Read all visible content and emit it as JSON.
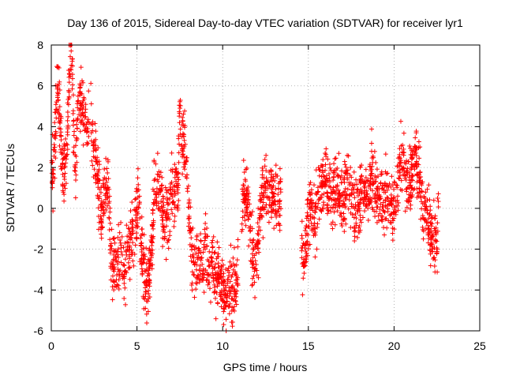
{
  "chart_data": {
    "type": "scatter",
    "title": "Day 136 of 2015, Sidereal Day-to-day VTEC variation (SDTVAR) for receiver lyr1",
    "xlabel": "GPS time / hours",
    "ylabel": "SDTVAR / TECUs",
    "xlim": [
      0,
      25
    ],
    "ylim": [
      -6,
      8
    ],
    "xticks": [
      "0",
      "5",
      "10",
      "15",
      "20",
      "25"
    ],
    "yticks": [
      "-6",
      "-4",
      "-2",
      "0",
      "2",
      "4",
      "6",
      "8"
    ],
    "grid": true,
    "marker": "plus",
    "series": [
      {
        "name": "SDTVAR",
        "color": "#ff0000",
        "trace": [
          [
            0.0,
            2.5
          ],
          [
            0.1,
            1.5
          ],
          [
            0.2,
            3.0
          ],
          [
            0.3,
            5.6
          ],
          [
            0.4,
            5.8
          ],
          [
            0.5,
            4.5
          ],
          [
            0.6,
            2.5
          ],
          [
            0.7,
            1.2
          ],
          [
            0.8,
            2.0
          ],
          [
            0.9,
            2.5
          ],
          [
            1.0,
            5.5
          ],
          [
            1.1,
            7.0
          ],
          [
            1.2,
            7.8
          ],
          [
            1.3,
            4.0
          ],
          [
            1.4,
            1.5
          ],
          [
            1.5,
            4.5
          ],
          [
            1.7,
            5.3
          ],
          [
            1.9,
            4.8
          ],
          [
            2.1,
            3.5
          ],
          [
            2.3,
            4.8
          ],
          [
            2.5,
            3.0
          ],
          [
            2.7,
            1.5
          ],
          [
            2.9,
            -0.5
          ],
          [
            3.1,
            0.5
          ],
          [
            3.3,
            1.5
          ],
          [
            3.5,
            -2.5
          ],
          [
            3.7,
            -3.0
          ],
          [
            3.9,
            -2.5
          ],
          [
            4.1,
            -2.0
          ],
          [
            4.3,
            -3.0
          ],
          [
            4.5,
            -2.2
          ],
          [
            4.7,
            -1.5
          ],
          [
            4.9,
            -1.0
          ],
          [
            5.1,
            0.5
          ],
          [
            5.2,
            -1.5
          ],
          [
            5.4,
            -3.0
          ],
          [
            5.6,
            -4.0
          ],
          [
            5.8,
            -2.5
          ],
          [
            6.0,
            0.5
          ],
          [
            6.2,
            1.5
          ],
          [
            6.4,
            0.5
          ],
          [
            6.6,
            -1.0
          ],
          [
            6.8,
            -0.5
          ],
          [
            7.0,
            0.5
          ],
          [
            7.2,
            1.0
          ],
          [
            7.4,
            1.5
          ],
          [
            7.5,
            5.0
          ],
          [
            7.6,
            3.0
          ],
          [
            7.7,
            3.5
          ],
          [
            7.8,
            2.5
          ],
          [
            7.9,
            1.5
          ],
          [
            8.0,
            0.0
          ],
          [
            8.2,
            -2.5
          ],
          [
            8.4,
            -3.2
          ],
          [
            8.6,
            -2.0
          ],
          [
            8.8,
            -3.0
          ],
          [
            9.0,
            -2.0
          ],
          [
            9.2,
            -3.0
          ],
          [
            9.4,
            -2.5
          ],
          [
            9.6,
            -3.5
          ],
          [
            9.8,
            -3.0
          ],
          [
            10.0,
            -4.0
          ],
          [
            10.2,
            -4.3
          ],
          [
            10.4,
            -3.8
          ],
          [
            10.6,
            -4.0
          ],
          [
            10.8,
            -3.8
          ],
          [
            11.2,
            0.5
          ],
          [
            11.4,
            0.8
          ],
          [
            11.7,
            -2.0
          ],
          [
            11.9,
            -3.0
          ],
          [
            12.3,
            0.5
          ],
          [
            12.6,
            1.0
          ],
          [
            12.9,
            0.5
          ],
          [
            13.3,
            0.5
          ],
          [
            14.7,
            -2.5
          ],
          [
            14.9,
            -1.5
          ],
          [
            15.1,
            0.0
          ],
          [
            15.3,
            -0.5
          ],
          [
            15.6,
            0.5
          ],
          [
            15.8,
            1.0
          ],
          [
            16.0,
            1.5
          ],
          [
            16.3,
            0.5
          ],
          [
            16.6,
            1.0
          ],
          [
            17.0,
            0.0
          ],
          [
            17.3,
            1.5
          ],
          [
            17.6,
            0.5
          ],
          [
            17.9,
            0.0
          ],
          [
            18.2,
            1.0
          ],
          [
            18.5,
            0.5
          ],
          [
            18.7,
            2.0
          ],
          [
            18.9,
            1.0
          ],
          [
            19.2,
            0.8
          ],
          [
            19.5,
            0.5
          ],
          [
            19.8,
            0.0
          ],
          [
            20.0,
            0.2
          ],
          [
            20.2,
            1.0
          ],
          [
            20.4,
            2.8
          ],
          [
            20.7,
            1.5
          ],
          [
            20.9,
            1.0
          ],
          [
            21.1,
            2.0
          ],
          [
            21.3,
            2.5
          ],
          [
            21.5,
            1.5
          ],
          [
            21.7,
            0.0
          ],
          [
            21.9,
            -0.5
          ],
          [
            22.1,
            -1.0
          ],
          [
            22.3,
            -1.5
          ],
          [
            22.5,
            -2.0
          ],
          [
            22.6,
            0.5
          ]
        ],
        "min_x": 0.0,
        "max_x": 22.6
      }
    ],
    "gaps_hours": [
      [
        10.9,
        11.1
      ],
      [
        13.4,
        14.6
      ]
    ]
  }
}
